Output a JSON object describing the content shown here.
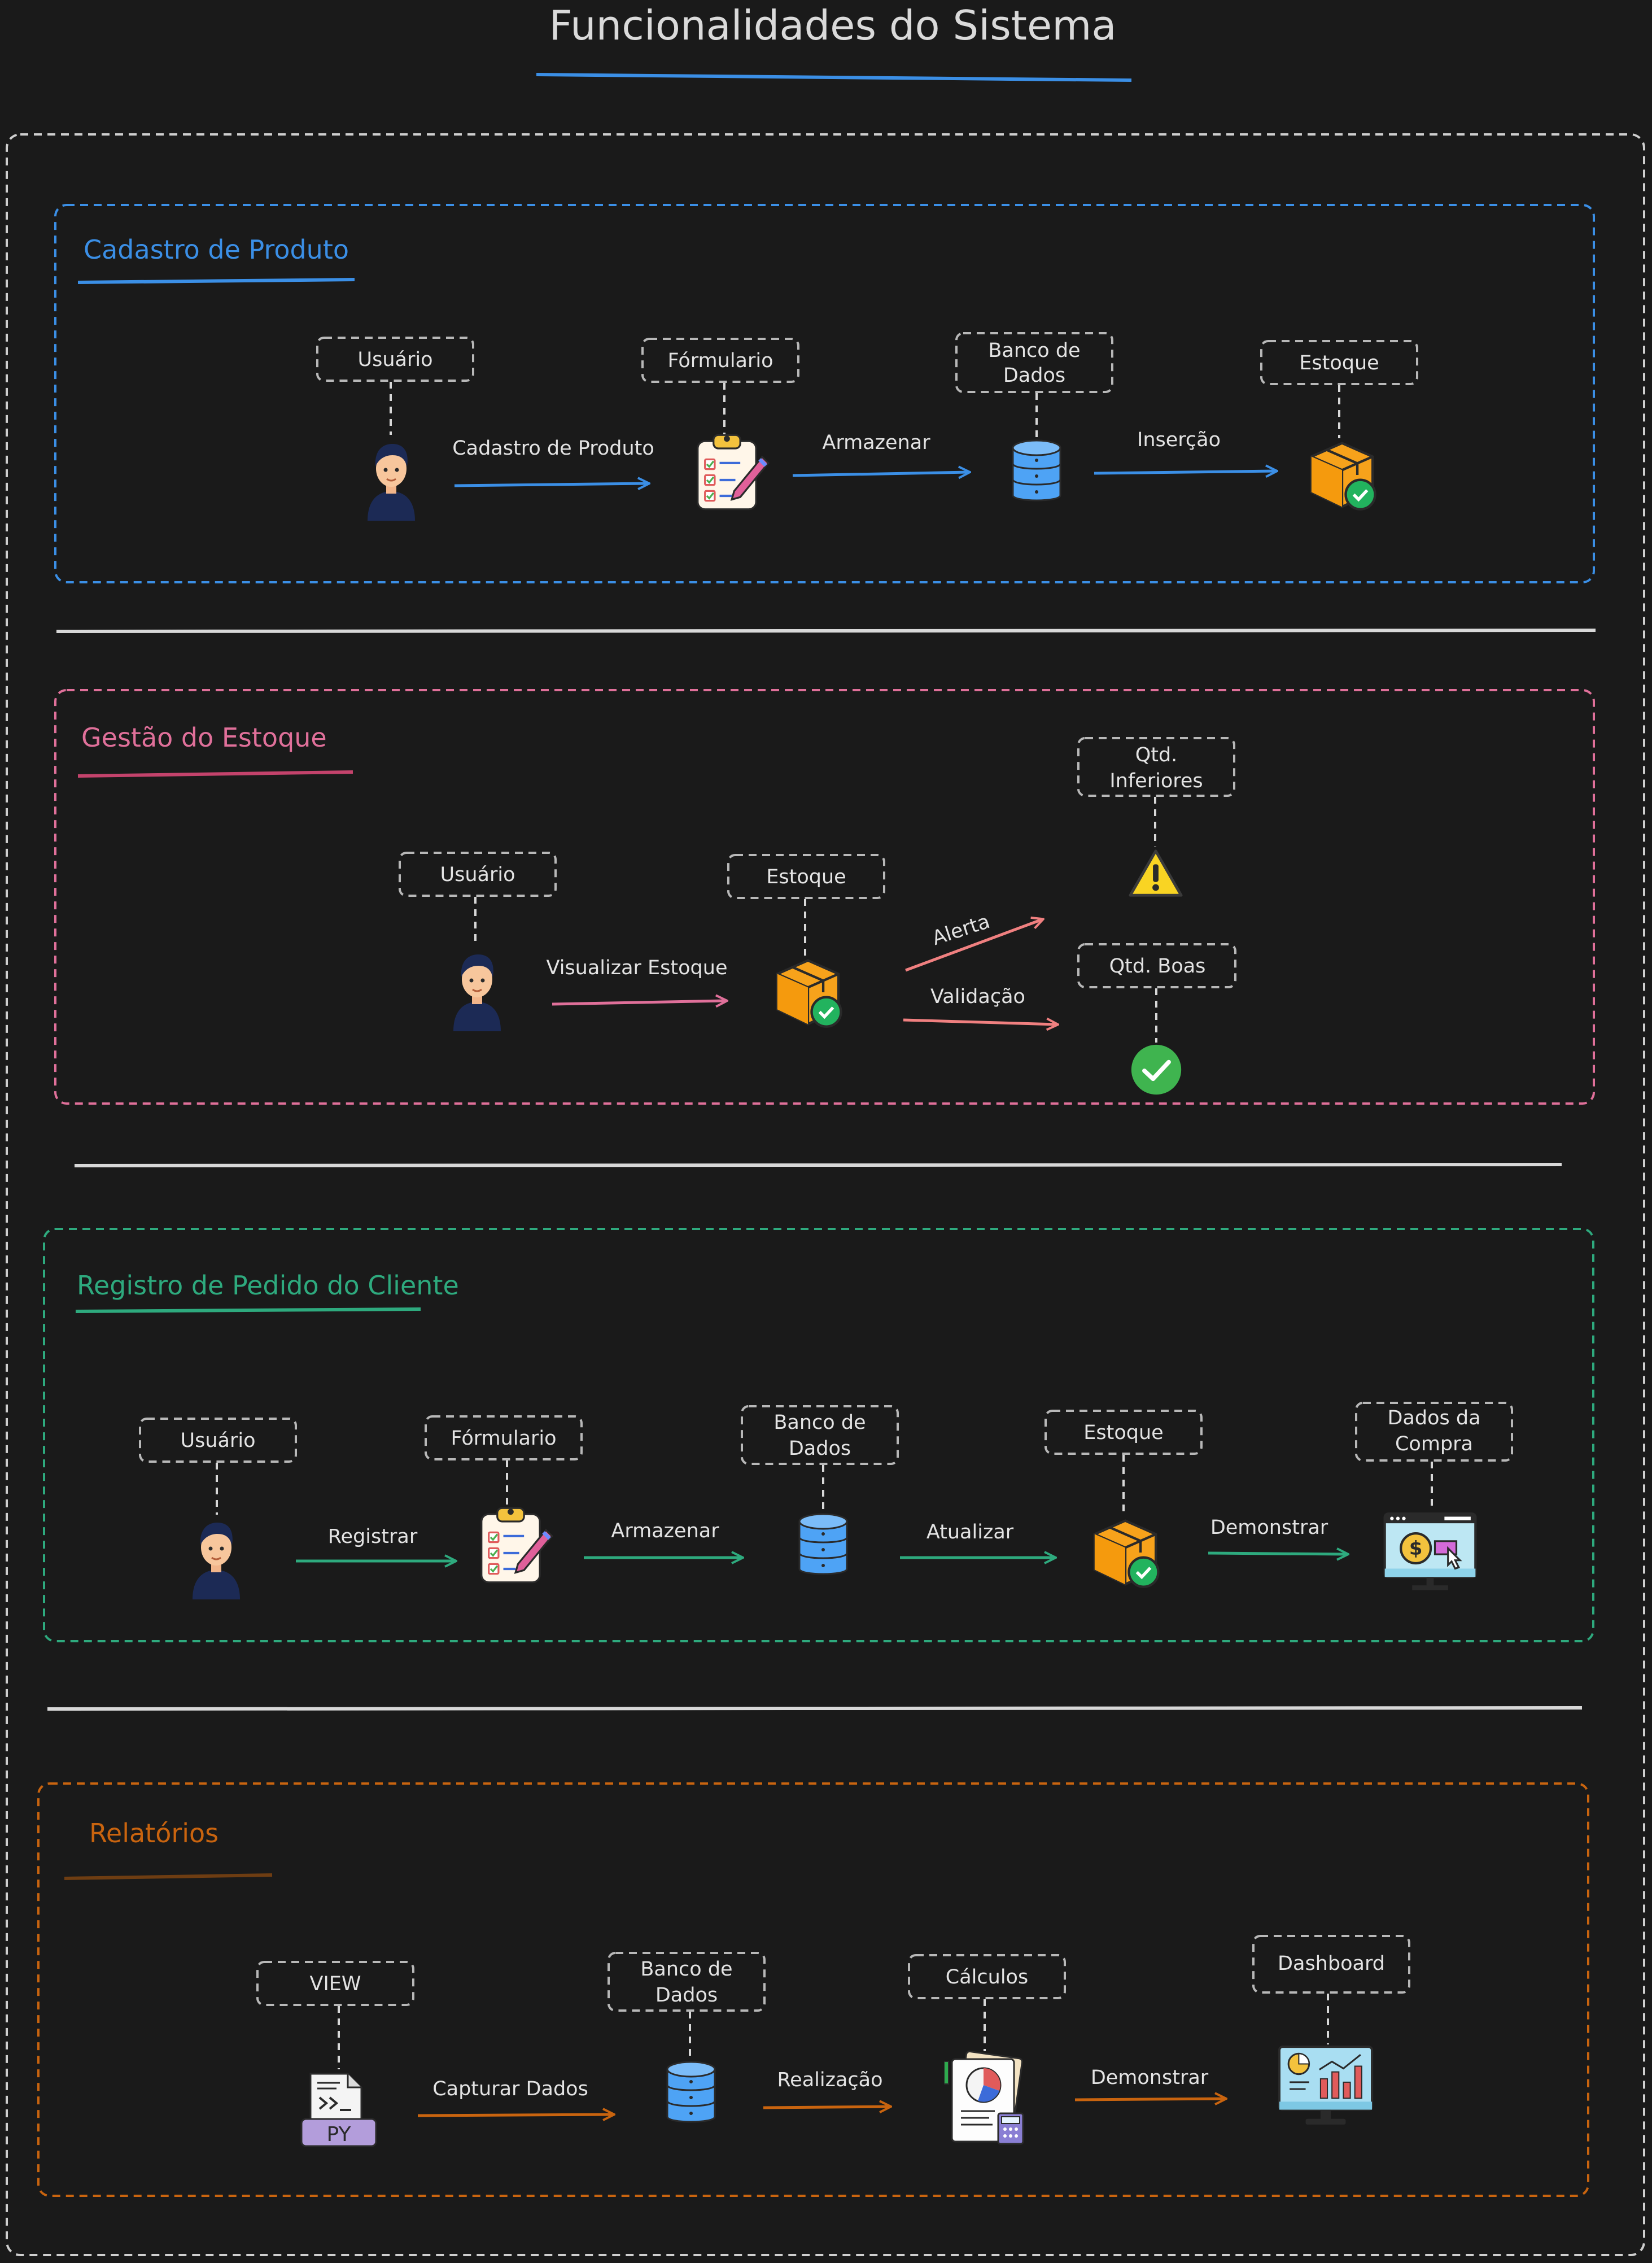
{
  "title": "Funcionalidades do Sistema",
  "colors": {
    "background": "#1a1a1a",
    "blue": "#3b8fe6",
    "pink": "#e0709a",
    "salmon": "#f08080",
    "green": "#2eaa7e",
    "orange": "#c9640f"
  },
  "sections": {
    "cadastro": {
      "title": "Cadastro de Produto",
      "nodes": [
        "Usuário",
        "Fórmulario",
        "Banco de",
        "Dados",
        "Estoque"
      ],
      "edges": [
        "Cadastro de Produto",
        "Armazenar",
        "Inserção"
      ]
    },
    "gestao": {
      "title": "Gestão do Estoque",
      "nodes": [
        "Usuário",
        "Estoque",
        "Qtd.",
        "Inferiores",
        "Qtd. Boas"
      ],
      "edges": [
        "Visualizar Estoque",
        "Alerta",
        "Validação"
      ]
    },
    "registro": {
      "title": "Registro de Pedido do Cliente",
      "nodes": [
        "Usuário",
        "Fórmulario",
        "Banco de",
        "Dados",
        "Estoque",
        "Dados da",
        "Compra"
      ],
      "edges": [
        "Registrar",
        "Armazenar",
        "Atualizar",
        "Demonstrar"
      ]
    },
    "relatorios": {
      "title": "Relatórios",
      "nodes": [
        "VIEW",
        "Banco de",
        "Dados",
        "Cálculos",
        "Dashboard"
      ],
      "edges": [
        "Capturar Dados",
        "Realização",
        "Demonstrar"
      ]
    }
  },
  "icons": {
    "user": "user-icon",
    "form": "clipboard-form-icon",
    "database": "database-icon",
    "stock": "box-check-icon",
    "warning": "warning-icon",
    "check": "check-circle-icon",
    "purchase": "monitor-dollar-icon",
    "python": "python-file-icon",
    "py_text": "PY",
    "calc": "calculations-icon",
    "dashboard": "dashboard-monitor-icon"
  }
}
